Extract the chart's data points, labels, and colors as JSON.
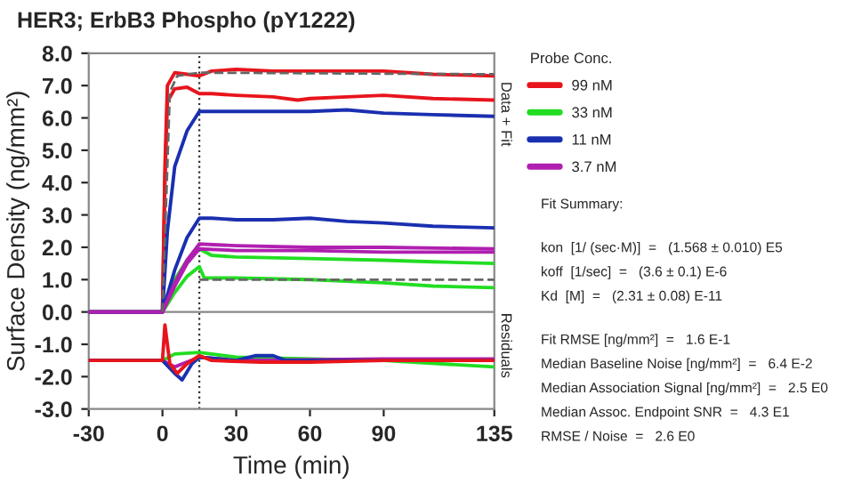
{
  "chart_data": {
    "type": "line",
    "title": "HER3; ErbB3 Phospho (pY1222)",
    "xlabel": "Time (min)",
    "ylabel": "Surface Density (ng/mm²)",
    "legend_title": "Probe Conc.",
    "legend": "right",
    "grid": false,
    "line_style": "solid",
    "marker": "none",
    "xlim": [
      -30,
      135
    ],
    "xticks": [
      -30,
      0,
      30,
      60,
      90,
      135
    ],
    "ylim": [
      -3,
      8
    ],
    "yticks": [
      {
        "value": -3,
        "label": "-3.0"
      },
      {
        "value": -2,
        "label": "-2.0"
      },
      {
        "value": -1,
        "label": "-1.0"
      },
      {
        "value": 0,
        "label": "0.0"
      },
      {
        "value": 1,
        "label": "1.0"
      },
      {
        "value": 2,
        "label": "2.0"
      },
      {
        "value": 3,
        "label": "3.0"
      },
      {
        "value": 4,
        "label": "4.0"
      },
      {
        "value": 5,
        "label": "5.0"
      },
      {
        "value": 6,
        "label": "6.0"
      },
      {
        "value": 7,
        "label": "7.0"
      },
      {
        "value": 8,
        "label": "8.0"
      }
    ],
    "ref_lines": [
      {
        "axis": "x",
        "value": 15,
        "color": "#333333",
        "line_style": "dotted"
      },
      {
        "axis": "y",
        "value": 0,
        "color": "#888888",
        "line_style": "solid"
      }
    ],
    "series": [
      {
        "name": "99 nM",
        "color": "#e8141c",
        "x": [
          -30,
          0,
          1,
          2,
          5,
          10,
          15,
          20,
          30,
          45,
          60,
          75,
          90,
          110,
          135
        ],
        "values": [
          0,
          0,
          4.5,
          7.0,
          7.4,
          7.35,
          7.3,
          7.45,
          7.5,
          7.45,
          7.45,
          7.45,
          7.45,
          7.35,
          7.3
        ]
      },
      {
        "color": "#e8141c",
        "x": [
          -30,
          0,
          1,
          2,
          5,
          10,
          15,
          20,
          30,
          45,
          55,
          60,
          75,
          90,
          110,
          135
        ],
        "values": [
          0,
          0,
          4.0,
          6.5,
          6.9,
          6.95,
          6.75,
          6.75,
          6.7,
          6.65,
          6.55,
          6.6,
          6.65,
          6.7,
          6.6,
          6.55
        ]
      },
      {
        "name": "33 nM",
        "color": "#22dd22",
        "x": [
          -30,
          0,
          5,
          10,
          15,
          20,
          30,
          60,
          90,
          110,
          135
        ],
        "values": [
          0,
          0,
          1.0,
          1.6,
          1.95,
          1.75,
          1.7,
          1.65,
          1.6,
          1.55,
          1.5
        ]
      },
      {
        "color": "#22dd22",
        "x": [
          -30,
          0,
          5,
          10,
          15,
          17,
          20,
          30,
          60,
          90,
          110,
          135
        ],
        "values": [
          0,
          0,
          0.6,
          1.1,
          1.4,
          1.05,
          1.05,
          1.05,
          1.0,
          0.9,
          0.8,
          0.75
        ]
      },
      {
        "name": "11 nM",
        "color": "#1a2fb0",
        "x": [
          -30,
          0,
          2,
          5,
          10,
          15,
          20,
          30,
          45,
          60,
          75,
          90,
          110,
          135
        ],
        "values": [
          0,
          0,
          2.5,
          4.5,
          5.6,
          6.2,
          6.2,
          6.2,
          6.2,
          6.2,
          6.25,
          6.15,
          6.1,
          6.05
        ]
      },
      {
        "color": "#1a2fb0",
        "x": [
          -30,
          0,
          5,
          10,
          15,
          20,
          30,
          45,
          60,
          75,
          90,
          110,
          135
        ],
        "values": [
          0,
          0,
          1.3,
          2.3,
          2.9,
          2.9,
          2.85,
          2.85,
          2.9,
          2.8,
          2.75,
          2.65,
          2.6
        ]
      },
      {
        "name": "3.7 nM",
        "color": "#b01fb0",
        "x": [
          -30,
          0,
          5,
          10,
          15,
          30,
          60,
          90,
          135
        ],
        "values": [
          0,
          0,
          0.9,
          1.6,
          2.1,
          2.05,
          2.0,
          2.0,
          1.95
        ]
      },
      {
        "color": "#b01fb0",
        "x": [
          -30,
          0,
          5,
          10,
          15,
          30,
          60,
          90,
          135
        ],
        "values": [
          0,
          0,
          0.8,
          1.5,
          1.95,
          1.9,
          1.9,
          1.85,
          1.85
        ]
      },
      {
        "color": "#666666",
        "line_style": "dashed",
        "x": [
          0,
          3,
          6,
          15,
          135
        ],
        "values": [
          0,
          6.8,
          7.3,
          7.4,
          7.35
        ]
      },
      {
        "color": "#666666",
        "line_style": "dashed",
        "x": [
          15,
          30,
          90,
          135
        ],
        "values": [
          1.0,
          1.0,
          1.0,
          1.0
        ]
      },
      {
        "color": "#22dd22",
        "x": [
          -30,
          0,
          5,
          15,
          30,
          60,
          90,
          135
        ],
        "values": [
          -1.5,
          -1.5,
          -1.3,
          -1.25,
          -1.4,
          -1.45,
          -1.5,
          -1.7
        ]
      },
      {
        "color": "#b01fb0",
        "x": [
          -30,
          0,
          5,
          15,
          30,
          90,
          135
        ],
        "values": [
          -1.5,
          -1.5,
          -1.7,
          -1.4,
          -1.5,
          -1.45,
          -1.45
        ]
      },
      {
        "color": "#1a2fb0",
        "x": [
          -30,
          0,
          5,
          8,
          12,
          15,
          30,
          38,
          45,
          50,
          135
        ],
        "values": [
          -1.5,
          -1.5,
          -1.9,
          -2.1,
          -1.6,
          -1.4,
          -1.5,
          -1.35,
          -1.35,
          -1.5,
          -1.5
        ]
      },
      {
        "color": "#e8141c",
        "x": [
          -30,
          0,
          1,
          3,
          6,
          10,
          15,
          20,
          40,
          60,
          90,
          135
        ],
        "values": [
          -1.5,
          -1.5,
          -0.4,
          -1.6,
          -1.9,
          -1.6,
          -1.35,
          -1.5,
          -1.55,
          -1.55,
          -1.5,
          -1.5
        ]
      }
    ],
    "annotations": [
      "Data + Fit",
      "Residuals",
      "Fit Summary:",
      "kon  [1/ (sec·M)]  =   (1.568 ± 0.010) E5",
      "koff  [1/sec]  =   (3.6 ± 0.1) E-6",
      "Kd  [M]  =   (2.31 ± 0.08) E-11",
      "Fit RMSE [ng/mm²]  =   1.6 E-1",
      "Median Baseline Noise [ng/mm²]  =   6.4 E-2",
      "Median Association Signal [ng/mm²]  =   2.5 E0",
      "Median Assoc. Endpoint SNR  =   4.3 E1",
      "RMSE / Noise  =   2.6 E0"
    ]
  }
}
